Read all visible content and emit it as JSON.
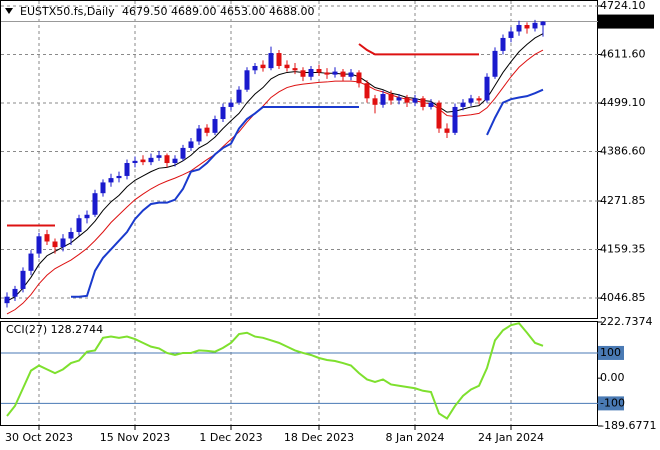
{
  "chart_data": [
    {
      "type": "candlestick",
      "title": "EUSTX50.fs,Daily",
      "ohlc_label": "4679.50 4689.00 4653.00 4688.00",
      "categories": [
        null,
        null,
        null,
        null,
        "30 Oct 2023",
        null,
        null,
        null,
        null,
        null,
        null,
        null,
        null,
        null,
        null,
        null,
        "15 Nov 2023",
        null,
        null,
        null,
        null,
        null,
        null,
        null,
        null,
        null,
        null,
        null,
        "1 Dec 2023",
        null,
        null,
        null,
        null,
        null,
        null,
        null,
        null,
        null,
        null,
        "18 Dec 2023",
        null,
        null,
        null,
        null,
        null,
        null,
        null,
        null,
        null,
        null,
        null,
        "8 Jan 2024",
        null,
        null,
        null,
        null,
        null,
        null,
        null,
        null,
        null,
        null,
        null,
        "24 Jan 2024",
        null,
        null,
        null,
        null
      ],
      "open": [
        4035,
        4050,
        4068,
        4110,
        4150,
        4195,
        4178,
        4165,
        4185,
        4200,
        4232,
        4240,
        4290,
        4315,
        4325,
        4330,
        4360,
        4368,
        4362,
        4372,
        4378,
        4360,
        4370,
        4395,
        4410,
        4442,
        4430,
        4462,
        4490,
        4500,
        4530,
        4575,
        4588,
        4580,
        4615,
        4588,
        4580,
        4575,
        4560,
        4578,
        4570,
        4565,
        4572,
        4560,
        4570,
        4545,
        4510,
        4495,
        4520,
        4505,
        4512,
        4500,
        4510,
        4490,
        4500,
        4440,
        4430,
        4490,
        4500,
        4510,
        4505,
        4560,
        4620,
        4650,
        4665,
        4680,
        4672,
        4679.5
      ],
      "high": [
        4060,
        4075,
        4118,
        4158,
        4198,
        4205,
        4185,
        4195,
        4210,
        4240,
        4250,
        4298,
        4322,
        4335,
        4340,
        4368,
        4375,
        4378,
        4382,
        4388,
        4382,
        4378,
        4402,
        4418,
        4448,
        4450,
        4470,
        4498,
        4508,
        4538,
        4582,
        4592,
        4598,
        4630,
        4622,
        4598,
        4592,
        4582,
        4585,
        4588,
        4580,
        4582,
        4578,
        4578,
        4575,
        4552,
        4518,
        4528,
        4528,
        4520,
        4518,
        4518,
        4515,
        4508,
        4505,
        4452,
        4498,
        4508,
        4518,
        4515,
        4568,
        4628,
        4658,
        4675,
        4690,
        4686,
        4692,
        4689
      ],
      "low": [
        4025,
        4040,
        4060,
        4100,
        4140,
        4170,
        4150,
        4155,
        4170,
        4192,
        4220,
        4235,
        4282,
        4305,
        4315,
        4322,
        4350,
        4355,
        4355,
        4365,
        4350,
        4352,
        4365,
        4388,
        4402,
        4422,
        4425,
        4455,
        4482,
        4495,
        4525,
        4566,
        4572,
        4575,
        4578,
        4572,
        4566,
        4550,
        4552,
        4562,
        4555,
        4558,
        4550,
        4552,
        4535,
        4500,
        4475,
        4488,
        4495,
        4496,
        4490,
        4492,
        4482,
        4484,
        4430,
        4418,
        4425,
        4482,
        4492,
        4496,
        4500,
        4555,
        4612,
        4640,
        4655,
        4660,
        4665,
        4653
      ],
      "close": [
        4050,
        4068,
        4110,
        4150,
        4190,
        4178,
        4165,
        4185,
        4200,
        4232,
        4240,
        4290,
        4315,
        4325,
        4330,
        4360,
        4365,
        4362,
        4372,
        4378,
        4360,
        4370,
        4395,
        4410,
        4440,
        4430,
        4462,
        4490,
        4500,
        4530,
        4575,
        4585,
        4580,
        4615,
        4585,
        4580,
        4575,
        4560,
        4578,
        4570,
        4565,
        4572,
        4560,
        4570,
        4545,
        4510,
        4495,
        4520,
        4505,
        4512,
        4500,
        4510,
        4490,
        4500,
        4440,
        4430,
        4490,
        4500,
        4510,
        4505,
        4560,
        4620,
        4650,
        4665,
        4680,
        4672,
        4685,
        4688
      ],
      "up_color": "#1a1acd",
      "down_color": "#e01010",
      "overlays": [
        {
          "color": "#000000",
          "width": 1,
          "values": [
            4040,
            4050,
            4070,
            4095,
            4125,
            4145,
            4155,
            4165,
            4175,
            4190,
            4205,
            4225,
            4250,
            4270,
            4285,
            4305,
            4320,
            4330,
            4340,
            4348,
            4350,
            4355,
            4365,
            4378,
            4395,
            4405,
            4420,
            4440,
            4458,
            4475,
            4500,
            4520,
            4535,
            4555,
            4565,
            4570,
            4572,
            4570,
            4570,
            4570,
            4568,
            4568,
            4566,
            4566,
            4560,
            4548,
            4535,
            4530,
            4522,
            4518,
            4512,
            4510,
            4505,
            4503,
            4490,
            4478,
            4480,
            4485,
            4490,
            4493,
            4510,
            4540,
            4570,
            4595,
            4618,
            4635,
            4650,
            4660
          ]
        },
        {
          "color": "#dd1111",
          "width": 1,
          "values": [
            4010,
            4020,
            4035,
            4055,
            4080,
            4100,
            4115,
            4125,
            4135,
            4148,
            4162,
            4180,
            4200,
            4222,
            4240,
            4258,
            4275,
            4288,
            4300,
            4310,
            4318,
            4325,
            4333,
            4342,
            4355,
            4368,
            4380,
            4398,
            4415,
            4432,
            4455,
            4475,
            4492,
            4512,
            4525,
            4535,
            4540,
            4543,
            4545,
            4547,
            4548,
            4550,
            4550,
            4550,
            4548,
            4540,
            4530,
            4525,
            4518,
            4512,
            4508,
            4505,
            4500,
            4497,
            4485,
            4470,
            4468,
            4470,
            4472,
            4475,
            4488,
            4510,
            4535,
            4560,
            4582,
            4598,
            4612,
            4622
          ]
        },
        {
          "color": "#1a3acd",
          "width": 2,
          "values": [
            null,
            null,
            null,
            null,
            null,
            null,
            null,
            null,
            4050,
            4050,
            4052,
            4110,
            4140,
            4160,
            4180,
            4200,
            4230,
            4250,
            4265,
            4268,
            4268,
            4275,
            4300,
            4340,
            4345,
            4360,
            4380,
            4395,
            4405,
            4440,
            4462,
            4475,
            4490,
            4490,
            4490,
            4490,
            4490,
            4490,
            4490,
            4490,
            4490,
            4490,
            4490,
            4490,
            4490,
            null,
            null,
            null,
            null,
            null,
            null,
            null,
            null,
            null,
            null,
            null,
            null,
            null,
            null,
            null,
            4425,
            4465,
            4500,
            4508,
            4512,
            4515,
            4522,
            4530
          ]
        },
        {
          "color": "#dd1111",
          "width": 2,
          "values": [
            4215,
            4215,
            4215,
            4215,
            4215,
            4215,
            4215,
            null,
            null,
            null,
            null,
            null,
            null,
            null,
            null,
            null,
            null,
            null,
            null,
            null,
            null,
            null,
            null,
            null,
            null,
            null,
            null,
            null,
            null,
            null,
            null,
            null,
            null,
            null,
            null,
            null,
            null,
            null,
            null,
            null,
            null,
            null,
            null,
            null,
            4636,
            4622,
            4612,
            4612,
            4612,
            4612,
            4612,
            4612,
            4612,
            4612,
            4612,
            4612,
            4612,
            4612,
            4612,
            4612,
            null,
            null,
            null,
            null,
            null,
            null,
            null,
            null
          ]
        }
      ],
      "current_price": {
        "value": 4688,
        "label": "4688.00"
      },
      "ylim": [
        4000.6,
        4738.0
      ],
      "yticks": [
        {
          "value": 4724.1,
          "label": "4724.10"
        },
        {
          "value": 4611.6,
          "label": "4611.60"
        },
        {
          "value": 4499.1,
          "label": "4499.10"
        },
        {
          "value": 4386.6,
          "label": "4386.60"
        },
        4271.85,
        4159.35,
        4046.85
      ],
      "grid": true
    },
    {
      "type": "line",
      "title": "CCI(27) 128.2744",
      "color": "#7ee02e",
      "values": [
        -150,
        -110,
        -40,
        30,
        50,
        35,
        20,
        35,
        60,
        70,
        105,
        110,
        160,
        165,
        160,
        165,
        155,
        140,
        125,
        118,
        100,
        92,
        100,
        100,
        110,
        108,
        105,
        120,
        140,
        175,
        180,
        165,
        160,
        150,
        140,
        125,
        110,
        100,
        92,
        80,
        72,
        68,
        60,
        50,
        20,
        -5,
        -15,
        -5,
        -25,
        -30,
        -35,
        -40,
        -50,
        -55,
        -140,
        -160,
        -110,
        -70,
        -45,
        -30,
        40,
        150,
        190,
        210,
        218,
        180,
        140,
        128.2744
      ],
      "ylim": [
        -189.6771,
        222.7374
      ],
      "yticks": [
        {
          "value": 222.7374,
          "label": "222.7374"
        },
        100,
        {
          "value": 0,
          "label": "0.00"
        },
        -100,
        {
          "value": -189.6771,
          "label": "-189.6771"
        }
      ],
      "levels": [
        100,
        -100
      ],
      "level_color": "#4a7ab4"
    }
  ]
}
